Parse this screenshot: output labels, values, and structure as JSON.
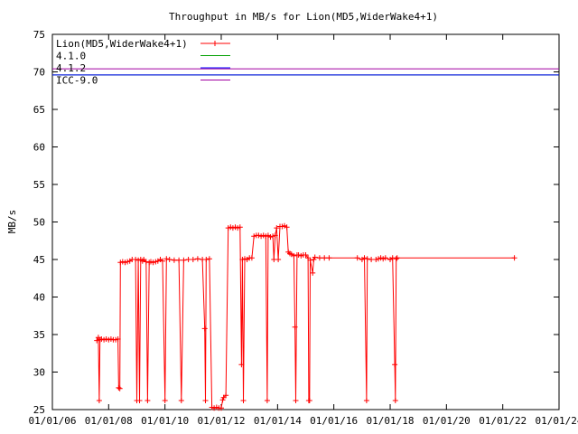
{
  "chart_data": {
    "type": "line",
    "title": "Throughput in MB/s for Lion(MD5,WiderWake4+1)",
    "ylabel": "MB/s",
    "xlabel": "",
    "ylim": [
      25,
      75
    ],
    "xlim": [
      "2006-01-01",
      "2024-01-01"
    ],
    "yticks": [
      25,
      30,
      35,
      40,
      45,
      50,
      55,
      60,
      65,
      70,
      75
    ],
    "xticks": [
      "2006-01-01",
      "2008-01-01",
      "2010-01-01",
      "2012-01-01",
      "2014-01-01",
      "2016-01-01",
      "2018-01-01",
      "2020-01-01",
      "2022-01-01",
      "2024-01-01"
    ],
    "xtick_labels": [
      "01/01/06",
      "01/01/08",
      "01/01/10",
      "01/01/12",
      "01/01/14",
      "01/01/16",
      "01/01/18",
      "01/01/20",
      "01/01/22",
      "01/01/24"
    ],
    "grid": false,
    "legend_position": "top-left",
    "series": [
      {
        "name": "Lion(MD5,WiderWake4+1)",
        "color": "#ff0000",
        "marker": "plus",
        "points": [
          [
            "2007-08-01",
            34.2
          ],
          [
            "2007-08-20",
            34.6
          ],
          [
            "2007-09-01",
            26.2
          ],
          [
            "2007-09-10",
            34.3
          ],
          [
            "2007-10-01",
            34.4
          ],
          [
            "2007-11-01",
            34.3
          ],
          [
            "2007-12-01",
            34.4
          ],
          [
            "2008-01-01",
            34.3
          ],
          [
            "2008-02-01",
            34.4
          ],
          [
            "2008-03-01",
            34.3
          ],
          [
            "2008-04-01",
            34.3
          ],
          [
            "2008-05-01",
            34.4
          ],
          [
            "2008-05-10",
            27.9
          ],
          [
            "2008-05-25",
            27.8
          ],
          [
            "2008-06-01",
            44.6
          ],
          [
            "2008-07-01",
            44.7
          ],
          [
            "2008-08-01",
            44.6
          ],
          [
            "2008-09-01",
            44.7
          ],
          [
            "2008-10-01",
            44.8
          ],
          [
            "2008-11-01",
            45.0
          ],
          [
            "2008-12-15",
            45.0
          ],
          [
            "2009-01-01",
            26.2
          ],
          [
            "2009-01-20",
            44.9
          ],
          [
            "2009-02-05",
            26.2
          ],
          [
            "2009-02-20",
            45.0
          ],
          [
            "2009-03-15",
            44.8
          ],
          [
            "2009-04-01",
            45.0
          ],
          [
            "2009-05-01",
            44.7
          ],
          [
            "2009-05-20",
            26.2
          ],
          [
            "2009-06-10",
            44.6
          ],
          [
            "2009-07-01",
            44.7
          ],
          [
            "2009-08-01",
            44.6
          ],
          [
            "2009-09-01",
            44.7
          ],
          [
            "2009-10-01",
            44.8
          ],
          [
            "2009-11-01",
            45.0
          ],
          [
            "2009-12-01",
            44.8
          ],
          [
            "2010-01-01",
            26.2
          ],
          [
            "2010-01-20",
            45.1
          ],
          [
            "2010-03-01",
            45.0
          ],
          [
            "2010-05-01",
            44.9
          ],
          [
            "2010-07-01",
            44.9
          ],
          [
            "2010-08-01",
            26.2
          ],
          [
            "2010-09-01",
            44.9
          ],
          [
            "2010-11-01",
            45.0
          ],
          [
            "2011-01-01",
            45.0
          ],
          [
            "2011-03-01",
            45.1
          ],
          [
            "2011-05-01",
            45.0
          ],
          [
            "2011-06-01",
            35.8
          ],
          [
            "2011-06-10",
            26.2
          ],
          [
            "2011-06-20",
            45.0
          ],
          [
            "2011-08-01",
            45.1
          ],
          [
            "2011-09-01",
            25.3
          ],
          [
            "2011-10-01",
            25.2
          ],
          [
            "2011-11-01",
            25.3
          ],
          [
            "2011-12-01",
            25.2
          ],
          [
            "2012-01-01",
            25.2
          ],
          [
            "2012-01-20",
            26.3
          ],
          [
            "2012-02-01",
            26.6
          ],
          [
            "2012-03-01",
            26.9
          ],
          [
            "2012-04-01",
            49.2
          ],
          [
            "2012-05-01",
            49.3
          ],
          [
            "2012-06-01",
            49.2
          ],
          [
            "2012-07-01",
            49.3
          ],
          [
            "2012-08-01",
            49.2
          ],
          [
            "2012-09-01",
            49.3
          ],
          [
            "2012-09-20",
            31.0
          ],
          [
            "2012-10-01",
            45.0
          ],
          [
            "2012-10-15",
            26.2
          ],
          [
            "2012-11-01",
            45.1
          ],
          [
            "2012-12-01",
            45.0
          ],
          [
            "2013-01-01",
            45.2
          ],
          [
            "2013-02-01",
            45.2
          ],
          [
            "2013-03-01",
            48.1
          ],
          [
            "2013-04-01",
            48.2
          ],
          [
            "2013-05-01",
            48.2
          ],
          [
            "2013-06-01",
            48.1
          ],
          [
            "2013-07-01",
            48.2
          ],
          [
            "2013-08-01",
            48.1
          ],
          [
            "2013-08-20",
            26.2
          ],
          [
            "2013-09-01",
            48.2
          ],
          [
            "2013-10-01",
            48.0
          ],
          [
            "2013-11-01",
            48.1
          ],
          [
            "2013-11-15",
            45.0
          ],
          [
            "2013-12-01",
            48.2
          ],
          [
            "2013-12-20",
            49.2
          ],
          [
            "2014-01-10",
            45.0
          ],
          [
            "2014-02-01",
            49.4
          ],
          [
            "2014-03-01",
            49.4
          ],
          [
            "2014-04-01",
            49.5
          ],
          [
            "2014-05-01",
            49.3
          ],
          [
            "2014-05-20",
            46.0
          ],
          [
            "2014-06-10",
            45.8
          ],
          [
            "2014-07-01",
            45.7
          ],
          [
            "2014-08-01",
            45.5
          ],
          [
            "2014-08-15",
            36.0
          ],
          [
            "2014-08-25",
            26.2
          ],
          [
            "2014-09-10",
            45.6
          ],
          [
            "2014-10-01",
            45.6
          ],
          [
            "2014-11-01",
            45.5
          ],
          [
            "2014-12-01",
            45.6
          ],
          [
            "2015-01-01",
            45.6
          ],
          [
            "2015-02-01",
            45.2
          ],
          [
            "2015-02-10",
            26.2
          ],
          [
            "2015-02-20",
            26.2
          ],
          [
            "2015-03-01",
            44.9
          ],
          [
            "2015-04-01",
            43.2
          ],
          [
            "2015-04-15",
            45.0
          ],
          [
            "2015-05-01",
            45.3
          ],
          [
            "2015-07-01",
            45.2
          ],
          [
            "2015-09-01",
            45.2
          ],
          [
            "2015-11-01",
            45.2
          ],
          [
            "2016-11-01",
            45.2
          ],
          [
            "2017-01-01",
            45.0
          ],
          [
            "2017-02-01",
            45.2
          ],
          [
            "2017-03-01",
            26.2
          ],
          [
            "2017-03-10",
            45.1
          ],
          [
            "2017-05-01",
            45.0
          ],
          [
            "2017-07-01",
            45.0
          ],
          [
            "2017-08-01",
            45.1
          ],
          [
            "2017-09-01",
            45.2
          ],
          [
            "2017-10-01",
            45.1
          ],
          [
            "2017-11-01",
            45.2
          ],
          [
            "2018-01-01",
            45.0
          ],
          [
            "2018-02-01",
            45.2
          ],
          [
            "2018-03-01",
            31.0
          ],
          [
            "2018-03-10",
            26.2
          ],
          [
            "2018-03-20",
            45.1
          ],
          [
            "2018-04-01",
            45.2
          ],
          [
            "2022-06-01",
            45.2
          ]
        ]
      },
      {
        "name": "4.1.0",
        "color": "#00a000",
        "marker": "none",
        "value": 69.6
      },
      {
        "name": "4.1.2",
        "color": "#0000ff",
        "marker": "none",
        "value": 69.6
      },
      {
        "name": "ICC-9.0",
        "color": "#a000a0",
        "marker": "none",
        "value": 70.4
      }
    ]
  }
}
